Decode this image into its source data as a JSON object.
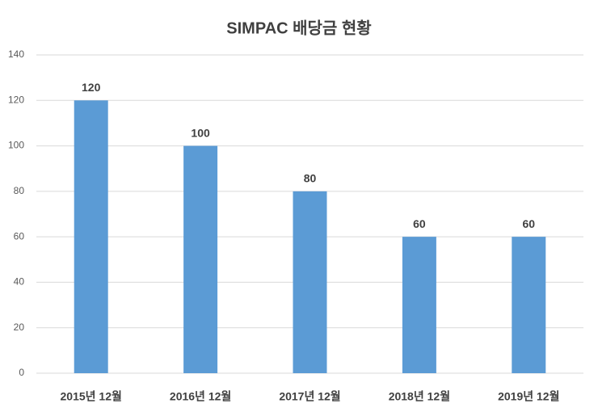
{
  "chart_data": {
    "type": "bar",
    "title": "SIMPAC 배당금 현황",
    "categories": [
      "2015년 12월",
      "2016년 12월",
      "2017년 12월",
      "2018년 12월",
      "2019년 12월"
    ],
    "values": [
      120,
      100,
      80,
      60,
      60
    ],
    "color": "#5b9bd5",
    "ylim": [
      0,
      140
    ],
    "yticks": [
      0,
      20,
      40,
      60,
      80,
      100,
      120,
      140
    ],
    "grid": true
  }
}
